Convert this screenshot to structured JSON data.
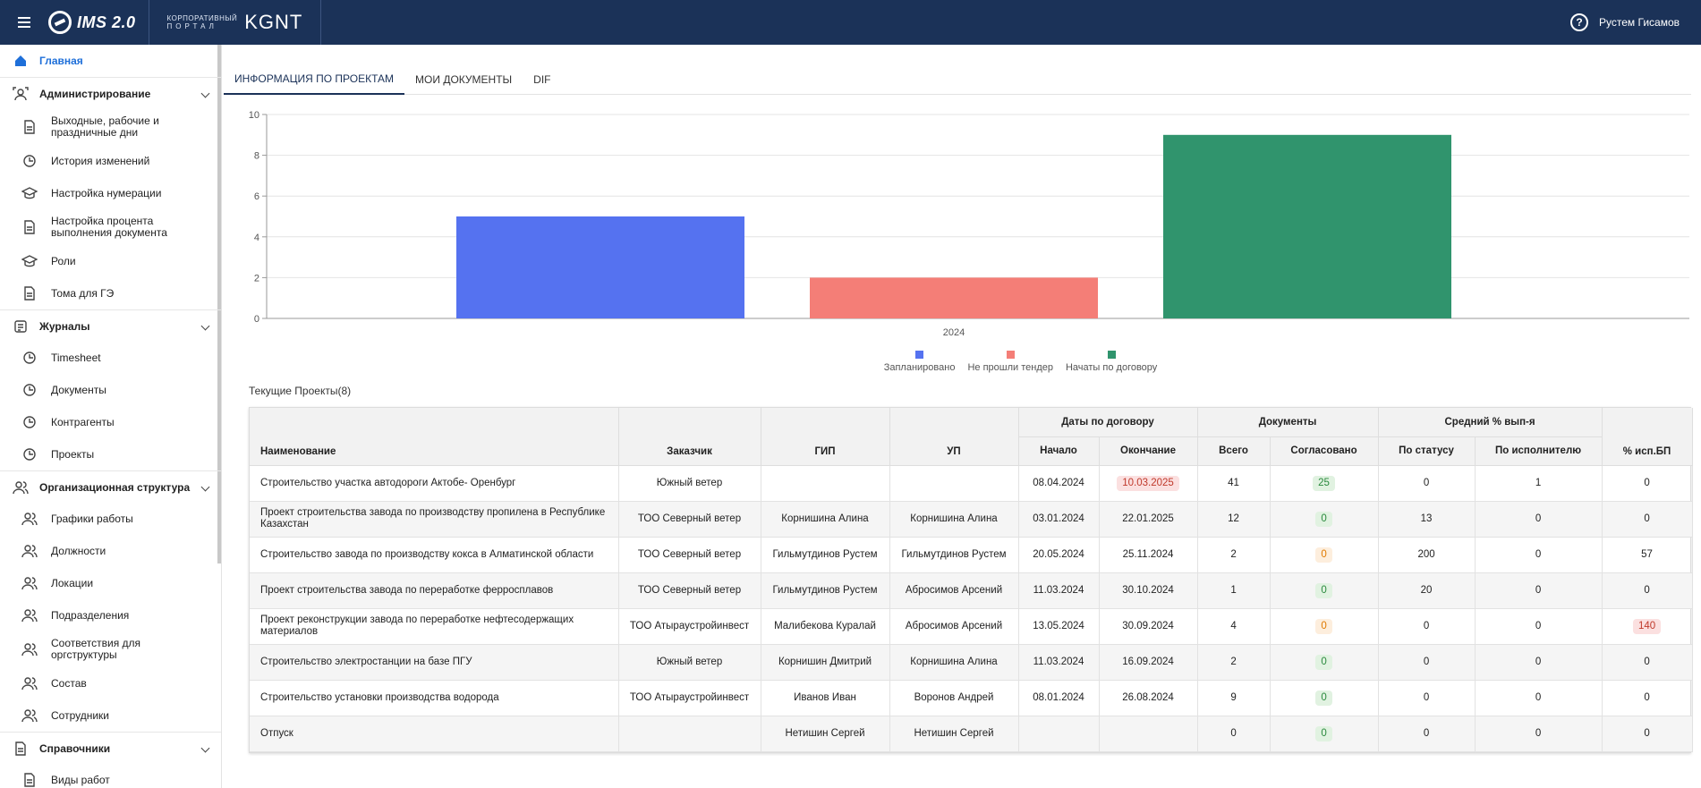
{
  "header": {
    "logo_text": "IMS 2.0",
    "portal_small_1": "Корпоративный",
    "portal_small_2": "портал",
    "portal_big": "KGNT",
    "user_name": "Рустем Гисамов",
    "help_symbol": "?"
  },
  "sidebar": {
    "home": "Главная",
    "sections": [
      {
        "label": "Администрирование",
        "items": [
          "Выходные, рабочие и праздничные дни",
          "История изменений",
          "Настройка нумерации",
          "Настройка процента выполнения документа",
          "Роли",
          "Тома для ГЭ"
        ]
      },
      {
        "label": "Журналы",
        "items": [
          "Timesheet",
          "Документы",
          "Контрагенты",
          "Проекты"
        ]
      },
      {
        "label": "Организационная структура",
        "items": [
          "Графики работы",
          "Должности",
          "Локации",
          "Подразделения",
          "Соответствия для оргструктуры",
          "Состав",
          "Сотрудники"
        ]
      },
      {
        "label": "Справочники",
        "items": [
          "Виды работ"
        ]
      }
    ]
  },
  "tabs": [
    "Информация по проектам",
    "Мои документы",
    "DIF"
  ],
  "chart_data": {
    "type": "bar",
    "categories": [
      "2024"
    ],
    "series": [
      {
        "name": "Запланировано",
        "values": [
          5
        ],
        "color": "#5572f0"
      },
      {
        "name": "Не прошли тендер",
        "values": [
          2
        ],
        "color": "#f47e77"
      },
      {
        "name": "Начаты по договору",
        "values": [
          9
        ],
        "color": "#30946d"
      }
    ],
    "ylim": [
      0,
      10
    ],
    "yticks": [
      0,
      2,
      4,
      6,
      8,
      10
    ],
    "grid": true,
    "legend": "bottom"
  },
  "table": {
    "title": "Текущие Проекты(8)",
    "group_headers": {
      "dates": "Даты по договору",
      "docs": "Документы",
      "avg": "Средний % вып-я"
    },
    "columns": [
      "Наименование",
      "Заказчик",
      "ГИП",
      "УП",
      "Начало",
      "Окончание",
      "Всего",
      "Согласовано",
      "По статусу",
      "По исполнителю",
      "% исп.БП"
    ],
    "rows": [
      {
        "name": "Строительство участка автодороги Актобе- Оренбург",
        "customer": "Южный ветер",
        "gip": "",
        "up": "",
        "start": "08.04.2024",
        "end": "10.03.2025",
        "end_flag": "red",
        "total": "41",
        "agreed": "25",
        "agreed_flag": "green",
        "status": "0",
        "executor": "1",
        "bp": "0",
        "bp_flag": ""
      },
      {
        "name": "Проект строительства завода по производству пропилена в Республике Казахстан",
        "customer": "ТОО Северный ветер",
        "gip": "Корнишина Алина",
        "up": "Корнишина Алина",
        "start": "03.01.2024",
        "end": "22.01.2025",
        "end_flag": "",
        "total": "12",
        "agreed": "0",
        "agreed_flag": "green",
        "status": "13",
        "executor": "0",
        "bp": "0",
        "bp_flag": ""
      },
      {
        "name": "Строительство завода по производству кокса в Алматинской области",
        "customer": "ТОО Северный ветер",
        "gip": "Гильмутдинов Рустем",
        "up": "Гильмутдинов Рустем",
        "start": "20.05.2024",
        "end": "25.11.2024",
        "end_flag": "",
        "total": "2",
        "agreed": "0",
        "agreed_flag": "orange",
        "status": "200",
        "executor": "0",
        "bp": "57",
        "bp_flag": ""
      },
      {
        "name": "Проект строительства завода по переработке ферросплавов",
        "customer": "ТОО Северный ветер",
        "gip": "Гильмутдинов Рустем",
        "up": "Абросимов Арсений",
        "start": "11.03.2024",
        "end": "30.10.2024",
        "end_flag": "",
        "total": "1",
        "agreed": "0",
        "agreed_flag": "green",
        "status": "20",
        "executor": "0",
        "bp": "0",
        "bp_flag": ""
      },
      {
        "name": "Проект реконструкции завода по переработке нефтесодержащих материалов",
        "customer": "ТОО Атыраустройинвест",
        "gip": "Малибекова Куралай",
        "up": "Абросимов Арсений",
        "start": "13.05.2024",
        "end": "30.09.2024",
        "end_flag": "",
        "total": "4",
        "agreed": "0",
        "agreed_flag": "orange",
        "status": "0",
        "executor": "0",
        "bp": "140",
        "bp_flag": "red"
      },
      {
        "name": "Строительство электростанции на базе ПГУ",
        "customer": "Южный ветер",
        "gip": "Корнишин Дмитрий",
        "up": "Корнишина Алина",
        "start": "11.03.2024",
        "end": "16.09.2024",
        "end_flag": "",
        "total": "2",
        "agreed": "0",
        "agreed_flag": "green",
        "status": "0",
        "executor": "0",
        "bp": "0",
        "bp_flag": ""
      },
      {
        "name": "Строительство установки производства водорода",
        "customer": "ТОО Атыраустройинвест",
        "gip": "Иванов Иван",
        "up": "Воронов Андрей",
        "start": "08.01.2024",
        "end": "26.08.2024",
        "end_flag": "",
        "total": "9",
        "agreed": "0",
        "agreed_flag": "green",
        "status": "0",
        "executor": "0",
        "bp": "0",
        "bp_flag": ""
      },
      {
        "name": "Отпуск",
        "customer": "",
        "gip": "Нетишин Сергей",
        "up": "Нетишин Сергей",
        "start": "",
        "end": "",
        "end_flag": "",
        "total": "0",
        "agreed": "0",
        "agreed_flag": "green",
        "status": "0",
        "executor": "0",
        "bp": "0",
        "bp_flag": ""
      }
    ]
  }
}
